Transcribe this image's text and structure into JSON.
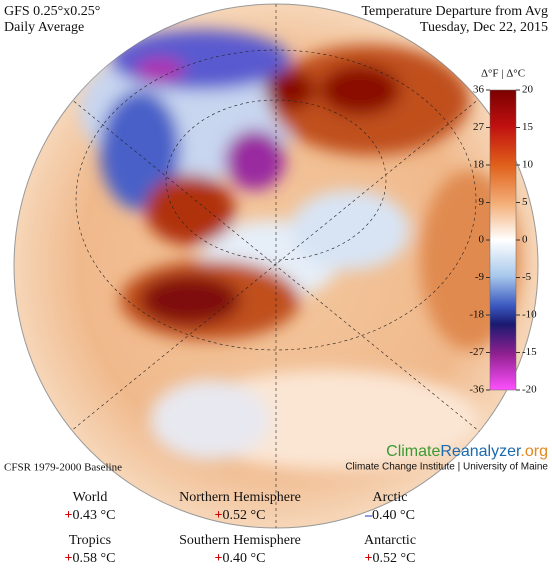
{
  "header": {
    "model": "GFS 0.25°x0.25°",
    "period": "Daily Average",
    "title": "Temperature Departure from Avg",
    "date": "Tuesday, Dec 22, 2015"
  },
  "colorbar": {
    "label": "Δ°F | Δ°C",
    "f_lim": [
      -36,
      36
    ],
    "f_ticks": [
      36,
      27,
      18,
      9,
      0,
      -9,
      -18,
      -27,
      -36
    ],
    "c_ticks": [
      20,
      15,
      10,
      5,
      0,
      -5,
      -10,
      -15,
      -20
    ]
  },
  "baseline": "CFSR 1979-2000 Baseline",
  "logo": {
    "climate": "Climate",
    "reanalyzer": "Reanalyzer",
    "org": ".org",
    "credit": "Climate Change Institute | University of Maine"
  },
  "stats": [
    {
      "name": "World",
      "sign": "+",
      "value": "0.43 °C",
      "sign_color": "#d00000"
    },
    {
      "name": "Northern Hemisphere",
      "sign": "+",
      "value": "0.52 °C",
      "sign_color": "#d00000"
    },
    {
      "name": "Arctic",
      "sign": "–",
      "value": "0.40 °C",
      "sign_color": "#1030c0"
    },
    {
      "name": "Tropics",
      "sign": "+",
      "value": "0.58 °C",
      "sign_color": "#d00000"
    },
    {
      "name": "Southern Hemisphere",
      "sign": "+",
      "value": "0.40 °C",
      "sign_color": "#d00000"
    },
    {
      "name": "Antarctic",
      "sign": "+",
      "value": "0.52 °C",
      "sign_color": "#d00000"
    }
  ]
}
